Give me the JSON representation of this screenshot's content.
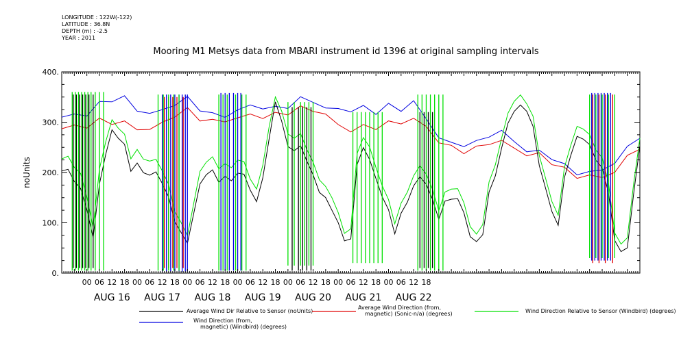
{
  "metadata": [
    "LONGITUDE : 122W(-122)",
    "LATITUDE : 36.8N",
    "DEPTH (m) : -2.5",
    "YEAR : 2011"
  ],
  "chart_data": {
    "type": "line",
    "title": "Mooring M1 Metsys data from MBARI instrument id 1396 at original sampling intervals",
    "ylabel": "noUnits",
    "ylim": [
      0,
      400
    ],
    "y_ticks": [
      0,
      100,
      200,
      300,
      400
    ],
    "y_tick_labels": [
      "0.",
      "100.",
      "200.",
      "300.",
      "400."
    ],
    "x_range_hours": [
      -12,
      264
    ],
    "hour_ticks": [
      0,
      6,
      12,
      18
    ],
    "day_labels": [
      "AUG 16",
      "AUG 17",
      "AUG 18",
      "AUG 19",
      "AUG 20",
      "AUG 21",
      "AUG 22"
    ],
    "hour_tick_labels": [
      "00",
      "06",
      "12",
      "18"
    ],
    "legend": [
      {
        "name": "Average Wind Dir Relative to Sensor (noUnits)",
        "color": "#000000"
      },
      {
        "name": "Average Wind Direction (from, magnetic) (Sonic-n/a) (degrees)",
        "color": "#e00000"
      },
      {
        "name": "Wind Direction Relative to Sensor (Windbird) (degrees)",
        "color": "#00e000"
      },
      {
        "name": "Wind Direction (from, magnetic) (Windbird) (degrees)",
        "color": "#0000e0"
      }
    ],
    "series": [
      {
        "name": "Average Wind Direction (from, magnetic) (Sonic-n/a) (degrees)",
        "color": "#e00000",
        "x": [
          -12,
          -6,
          0,
          6,
          12,
          18,
          24,
          30,
          36,
          42,
          48,
          54,
          60,
          66,
          72,
          78,
          84,
          90,
          96,
          102,
          108,
          114,
          120,
          126,
          132,
          138,
          144,
          150,
          156,
          162,
          168,
          174,
          180,
          186,
          192,
          198,
          204,
          210,
          216,
          222,
          228,
          234,
          240,
          246,
          252,
          258,
          264
        ],
        "y": [
          282,
          290,
          298,
          305,
          300,
          292,
          288,
          290,
          300,
          312,
          318,
          310,
          305,
          306,
          304,
          310,
          314,
          318,
          322,
          322,
          322,
          318,
          298,
          285,
          284,
          290,
          300,
          305,
          305,
          285,
          262,
          252,
          248,
          244,
          255,
          262,
          252,
          240,
          230,
          218,
          205,
          198,
          195,
          185,
          200,
          230,
          258
        ]
      },
      {
        "name": "Wind Direction (from, magnetic) (Windbird) (degrees)",
        "color": "#0000e0",
        "x": [
          -12,
          -6,
          0,
          6,
          12,
          18,
          24,
          30,
          36,
          42,
          48,
          54,
          60,
          66,
          72,
          78,
          84,
          90,
          96,
          102,
          108,
          114,
          120,
          126,
          132,
          138,
          144,
          150,
          156,
          162,
          168,
          174,
          180,
          186,
          192,
          198,
          204,
          210,
          216,
          222,
          228,
          234,
          240,
          246,
          252,
          258,
          264
        ],
        "y": [
          305,
          312,
          322,
          338,
          345,
          342,
          325,
          322,
          325,
          335,
          340,
          330,
          318,
          315,
          320,
          328,
          333,
          330,
          335,
          340,
          340,
          330,
          330,
          325,
          322,
          320,
          335,
          330,
          340,
          300,
          272,
          258,
          262,
          255,
          270,
          282,
          265,
          248,
          235,
          228,
          212,
          205,
          202,
          200,
          218,
          248,
          280
        ]
      },
      {
        "name": "Average Wind Dir Relative to Sensor (noUnits)",
        "color": "#000000",
        "x": [
          -12,
          -9,
          -6,
          -3,
          0,
          3,
          6,
          9,
          12,
          15,
          18,
          21,
          24,
          27,
          30,
          33,
          36,
          39,
          42,
          45,
          48,
          51,
          54,
          57,
          60,
          63,
          66,
          69,
          72,
          75,
          78,
          81,
          84,
          87,
          90,
          93,
          96,
          99,
          102,
          105,
          108,
          111,
          114,
          117,
          120,
          123,
          126,
          129,
          132,
          135,
          138,
          141,
          144,
          147,
          150,
          153,
          156,
          159,
          162,
          165,
          168,
          171,
          174,
          177,
          180,
          183,
          186,
          189,
          192,
          195,
          198,
          201,
          204,
          207,
          210,
          213,
          216,
          219,
          222,
          225,
          228,
          231,
          234,
          237,
          240,
          243,
          246,
          249,
          252,
          255,
          258,
          261,
          264
        ],
        "y": [
          198,
          202,
          192,
          165,
          130,
          60,
          180,
          240,
          285,
          270,
          245,
          210,
          218,
          205,
          190,
          195,
          185,
          150,
          110,
          70,
          60,
          120,
          180,
          200,
          194,
          185,
          190,
          192,
          196,
          190,
          168,
          140,
          200,
          258,
          340,
          300,
          255,
          250,
          244,
          225,
          190,
          170,
          150,
          120,
          100,
          60,
          80,
          210,
          250,
          220,
          190,
          160,
          120,
          80,
          110,
          150,
          175,
          190,
          175,
          140,
          118,
          140,
          150,
          140,
          120,
          80,
          60,
          80,
          150,
          200,
          250,
          300,
          320,
          325,
          330,
          290,
          220,
          160,
          120,
          100,
          190,
          240,
          260,
          270,
          255,
          230,
          210,
          150,
          70,
          40,
          60,
          150,
          250
        ]
      },
      {
        "name": "Wind Direction Relative to Sensor (Windbird) (degrees)",
        "color": "#00e000",
        "x": [
          -12,
          -9,
          -6,
          -3,
          0,
          3,
          6,
          9,
          12,
          15,
          18,
          21,
          24,
          27,
          30,
          33,
          36,
          39,
          42,
          45,
          48,
          51,
          54,
          57,
          60,
          63,
          66,
          69,
          72,
          75,
          78,
          81,
          84,
          87,
          90,
          93,
          96,
          99,
          102,
          105,
          108,
          111,
          114,
          117,
          120,
          123,
          126,
          129,
          132,
          135,
          138,
          141,
          144,
          147,
          150,
          153,
          156,
          159,
          162,
          165,
          168,
          171,
          174,
          177,
          180,
          183,
          186,
          189,
          192,
          195,
          198,
          201,
          204,
          207,
          210,
          213,
          216,
          219,
          222,
          225,
          228,
          231,
          234,
          237,
          240,
          243,
          246,
          249,
          252,
          255,
          258,
          261,
          264
        ],
        "y": [
          222,
          228,
          220,
          195,
          155,
          80,
          210,
          265,
          305,
          290,
          265,
          235,
          245,
          232,
          218,
          220,
          210,
          175,
          130,
          90,
          75,
          140,
          205,
          225,
          220,
          212,
          215,
          218,
          222,
          215,
          190,
          165,
          225,
          282,
          350,
          320,
          280,
          275,
          268,
          248,
          215,
          195,
          172,
          145,
          120,
          75,
          100,
          232,
          270,
          245,
          212,
          182,
          140,
          100,
          130,
          170,
          195,
          212,
          195,
          160,
          135,
          158,
          170,
          160,
          140,
          100,
          75,
          100,
          170,
          222,
          270,
          320,
          340,
          345,
          345,
          310,
          240,
          180,
          140,
          120,
          210,
          260,
          280,
          290,
          275,
          250,
          230,
          170,
          85,
          55,
          80,
          170,
          265
        ]
      }
    ],
    "spike_groups": [
      {
        "color": "#00e000",
        "x_hours": [
          -7,
          -5.5,
          -4,
          -2.5,
          -1,
          0.5,
          2,
          4,
          6,
          8
        ],
        "low": 5,
        "high": 360
      },
      {
        "color": "#000000",
        "x_hours": [
          -6.5,
          -5,
          -3.5,
          -2,
          -0.5,
          1,
          3
        ],
        "low": 10,
        "high": 355
      },
      {
        "color": "#0000e0",
        "x_hours": [
          36,
          38,
          40,
          42,
          44,
          45.5,
          47,
          48
        ],
        "low": 3,
        "high": 355
      },
      {
        "color": "#e00000",
        "x_hours": [
          37,
          39,
          41,
          43,
          46
        ],
        "low": 10,
        "high": 350
      },
      {
        "color": "#00e000",
        "x_hours": [
          34,
          36.5,
          39,
          41.5,
          44
        ],
        "low": 5,
        "high": 355
      },
      {
        "color": "#0000e0",
        "x_hours": [
          64,
          66,
          68,
          70,
          72,
          73.5
        ],
        "low": 5,
        "high": 358
      },
      {
        "color": "#00e000",
        "x_hours": [
          63,
          65,
          67,
          71,
          74,
          76
        ],
        "low": 5,
        "high": 355
      },
      {
        "color": "#00e000",
        "x_hours": [
          96,
          99,
          102,
          104,
          106,
          108
        ],
        "low": 15,
        "high": 340
      },
      {
        "color": "#000000",
        "x_hours": [
          98,
          101,
          103,
          105,
          107
        ],
        "low": 5,
        "high": 330
      },
      {
        "color": "#00e000",
        "x_hours": [
          127,
          129,
          131,
          133,
          135,
          137,
          139,
          141
        ],
        "low": 20,
        "high": 320
      },
      {
        "color": "#00e000",
        "x_hours": [
          158,
          160,
          162,
          164,
          166,
          168,
          170
        ],
        "low": 5,
        "high": 355
      },
      {
        "color": "#000000",
        "x_hours": [
          159,
          161,
          163,
          165
        ],
        "low": 10,
        "high": 320
      },
      {
        "color": "#0000e0",
        "x_hours": [
          241,
          242.5,
          244,
          245.5,
          247,
          248.5,
          250
        ],
        "low": 25,
        "high": 358
      },
      {
        "color": "#e00000",
        "x_hours": [
          241.5,
          244.5,
          247.5,
          251
        ],
        "low": 20,
        "high": 355
      },
      {
        "color": "#00e000",
        "x_hours": [
          240,
          243,
          246,
          249,
          252
        ],
        "low": 30,
        "high": 355
      }
    ]
  }
}
